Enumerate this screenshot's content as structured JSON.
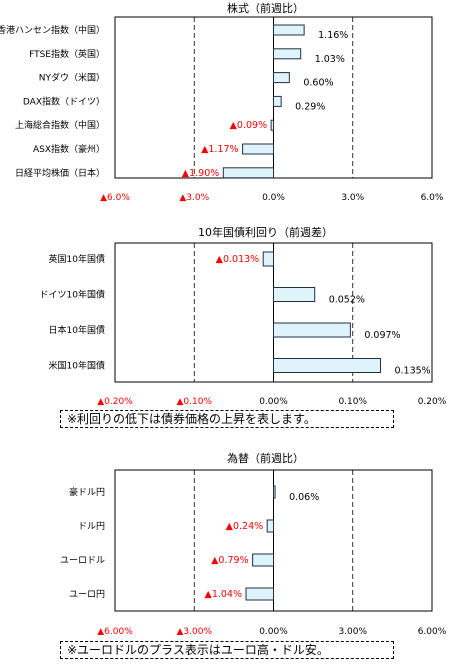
{
  "colors": {
    "bar_fill": "#dff3fb",
    "bar_stroke": "#1f2f4a",
    "negative_label": "#ff0000",
    "positive_label": "#000000",
    "axis_line": "#000000"
  },
  "chart_data": [
    {
      "type": "bar",
      "orientation": "horizontal",
      "title": "株式（前週比）",
      "categories": [
        "香港ハンセン指数（中国）",
        "FTSE指数（英国）",
        "NYダウ（米国）",
        "DAX指数（ドイツ）",
        "上海総合指数（中国）",
        "ASX指数（豪州）",
        "日経平均株価（日本）"
      ],
      "values": [
        1.16,
        1.03,
        0.6,
        0.29,
        -0.09,
        -1.17,
        -1.9
      ],
      "value_labels": [
        "1.16%",
        "1.03%",
        "0.60%",
        "0.29%",
        "▲0.09%",
        "▲1.17%",
        "▲1.90%"
      ],
      "xlim": [
        -6,
        6
      ],
      "xticks": [
        -6,
        -3,
        0,
        3,
        6
      ],
      "xtick_labels": [
        "▲6.0%",
        "▲3.0%",
        "0.0%",
        "3.0%",
        "6.0%"
      ],
      "grid": "dashed verticals at ±3"
    },
    {
      "type": "bar",
      "orientation": "horizontal",
      "title": "10年国債利回り（前週差）",
      "categories": [
        "英国10年国債",
        "ドイツ10年国債",
        "日本10年国債",
        "米国10年国債"
      ],
      "values": [
        -0.013,
        0.052,
        0.097,
        0.135
      ],
      "value_labels": [
        "▲0.013%",
        "0.052%",
        "0.097%",
        "0.135%"
      ],
      "xlim": [
        -0.2,
        0.2
      ],
      "xticks": [
        -0.2,
        -0.1,
        0,
        0.1,
        0.2
      ],
      "xtick_labels": [
        "▲0.20%",
        "▲0.10%",
        "0.00%",
        "0.10%",
        "0.20%"
      ],
      "grid": "dashed verticals at ±0.10",
      "note": "※利回りの低下は債券価格の上昇を表します。"
    },
    {
      "type": "bar",
      "orientation": "horizontal",
      "title": "為替（前週比）",
      "categories": [
        "豪ドル円",
        "ドル円",
        "ユーロドル",
        "ユーロ円"
      ],
      "values": [
        0.06,
        -0.24,
        -0.79,
        -1.04
      ],
      "value_labels": [
        "0.06%",
        "▲0.24%",
        "▲0.79%",
        "▲1.04%"
      ],
      "xlim": [
        -6,
        6
      ],
      "xticks": [
        -6,
        -3,
        0,
        3,
        6
      ],
      "xtick_labels": [
        "▲6.00%",
        "▲3.00%",
        "0.00%",
        "3.00%",
        "6.00%"
      ],
      "grid": "dashed verticals at ±3",
      "note": "※ユーロドルのプラス表示はユーロ高・ドル安。"
    }
  ]
}
